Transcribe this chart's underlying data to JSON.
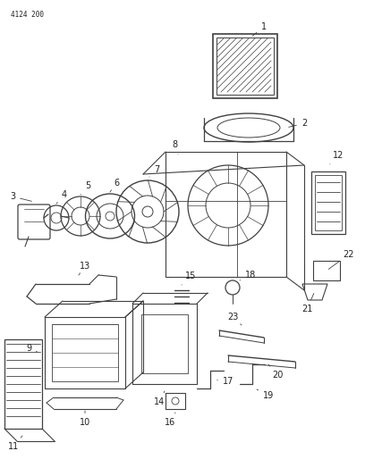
{
  "title": "4124 200",
  "background_color": "#ffffff",
  "line_color": "#404040",
  "text_color": "#222222",
  "fig_width": 4.08,
  "fig_height": 5.33,
  "dpi": 100
}
